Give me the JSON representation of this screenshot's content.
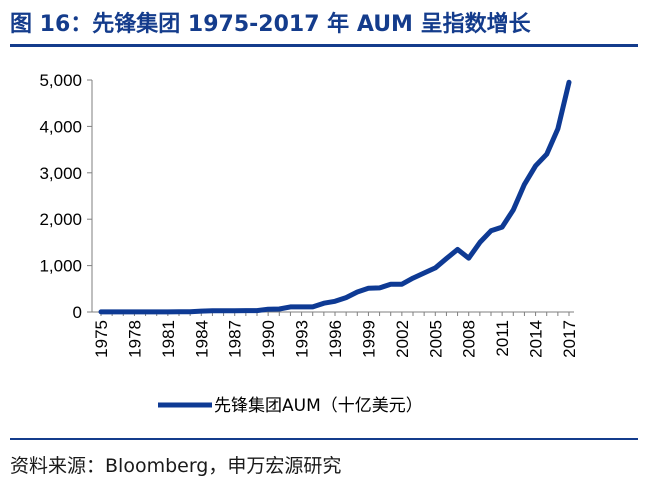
{
  "header": {
    "title": "图 16：先锋集团 1975-2017 年 AUM 呈指数增长"
  },
  "footer": {
    "source": "资料来源：Bloomberg，申万宏源研究"
  },
  "colors": {
    "accent": "#143C8C",
    "series": "#0E3A94"
  },
  "chart_data": {
    "type": "line",
    "title": "",
    "xlabel": "",
    "ylabel": "",
    "ylim": [
      0,
      5000
    ],
    "yticks": [
      "0",
      "1,000",
      "2,000",
      "3,000",
      "4,000",
      "5,000"
    ],
    "xticks": [
      "1975",
      "1978",
      "1981",
      "1984",
      "1987",
      "1990",
      "1993",
      "1996",
      "1999",
      "2002",
      "2005",
      "2008",
      "2011",
      "2014",
      "2017"
    ],
    "legend_position": "bottom",
    "grid": false,
    "x": [
      1975,
      1976,
      1977,
      1978,
      1979,
      1980,
      1981,
      1982,
      1983,
      1984,
      1985,
      1986,
      1987,
      1988,
      1989,
      1990,
      1991,
      1992,
      1993,
      1994,
      1995,
      1996,
      1997,
      1998,
      1999,
      2000,
      2001,
      2002,
      2003,
      2004,
      2005,
      2006,
      2007,
      2008,
      2009,
      2010,
      2011,
      2012,
      2013,
      2014,
      2015,
      2016,
      2017
    ],
    "series": [
      {
        "name": "先锋集团AUM（十亿美元）",
        "values": [
          2,
          2,
          2,
          2,
          2,
          3,
          3,
          4,
          5,
          20,
          25,
          25,
          28,
          30,
          30,
          60,
          65,
          110,
          110,
          110,
          190,
          230,
          310,
          430,
          510,
          520,
          600,
          600,
          730,
          840,
          950,
          1150,
          1350,
          1160,
          1500,
          1750,
          1830,
          2200,
          2750,
          3150,
          3400,
          3950,
          4950
        ]
      }
    ]
  }
}
